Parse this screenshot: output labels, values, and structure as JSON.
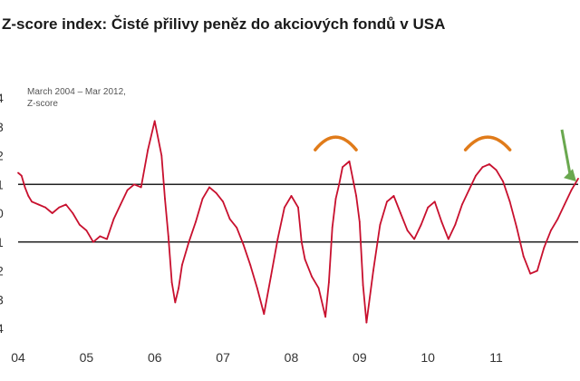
{
  "title": "Z-score index: Čisté přilivy peněz do akciových fondů v USA",
  "chart_data": {
    "type": "line",
    "annotation_lines": [
      "March 2004 – Mar 2012,",
      "Z-score"
    ],
    "x_range": [
      2004.0,
      2012.2
    ],
    "x_ticks": [
      {
        "label": "04",
        "value": 2004
      },
      {
        "label": "05",
        "value": 2005
      },
      {
        "label": "06",
        "value": 2006
      },
      {
        "label": "07",
        "value": 2007
      },
      {
        "label": "08",
        "value": 2008
      },
      {
        "label": "09",
        "value": 2009
      },
      {
        "label": "10",
        "value": 2010
      },
      {
        "label": "11",
        "value": 2011
      }
    ],
    "y_range": [
      -4,
      4
    ],
    "y_ticks": [
      {
        "label": "4",
        "value": 4
      },
      {
        "label": "3",
        "value": 3
      },
      {
        "label": "2",
        "value": 2
      },
      {
        "label": "1",
        "value": 1
      },
      {
        "label": "0",
        "value": 0
      },
      {
        "label": "1",
        "value": -1
      },
      {
        "label": "2",
        "value": -2
      },
      {
        "label": "3",
        "value": -3
      },
      {
        "label": "4",
        "value": -4
      }
    ],
    "reference_lines": [
      1,
      -1
    ],
    "line_color": "#c8102e",
    "arc_color": "#e07b1a",
    "arrow_color": "#6aa84f",
    "highlight_arcs": [
      {
        "x_from": 2008.35,
        "x_to": 2008.95
      },
      {
        "x_from": 2010.55,
        "x_to": 2011.2
      }
    ],
    "arrow": {
      "from": [
        2012.05,
        2.9
      ],
      "to": [
        2012.75,
        1.1
      ]
    },
    "series": [
      {
        "x": [
          2004.0,
          2004.05,
          2004.1,
          2004.15,
          2004.2,
          2004.3,
          2004.4,
          2004.5,
          2004.6,
          2004.7,
          2004.8,
          2004.9,
          2005.0,
          2005.1,
          2005.2,
          2005.3,
          2005.4,
          2005.5,
          2005.6,
          2005.7,
          2005.8,
          2005.9,
          2006.0,
          2006.1,
          2006.15,
          2006.2,
          2006.25,
          2006.3,
          2006.35,
          2006.4,
          2006.5,
          2006.6,
          2006.7,
          2006.8,
          2006.9,
          2007.0,
          2007.1,
          2007.2,
          2007.3,
          2007.4,
          2007.5,
          2007.6,
          2007.7,
          2007.8,
          2007.9,
          2008.0,
          2008.1,
          2008.15,
          2008.2,
          2008.3,
          2008.4,
          2008.5,
          2008.55,
          2008.6,
          2008.65,
          2008.7,
          2008.75,
          2008.8,
          2008.85,
          2008.9,
          2008.95,
          2009.0,
          2009.05,
          2009.1,
          2009.2,
          2009.3,
          2009.4,
          2009.5,
          2009.6,
          2009.7,
          2009.8,
          2009.9,
          2010.0,
          2010.1,
          2010.2,
          2010.3,
          2010.4,
          2010.5,
          2010.6,
          2010.7,
          2010.8,
          2010.9,
          2011.0,
          2011.1,
          2011.2,
          2011.3,
          2011.4,
          2011.5,
          2011.6,
          2011.7,
          2011.8,
          2011.9,
          2012.0,
          2012.1,
          2012.2
        ],
        "values": [
          1.4,
          1.3,
          0.9,
          0.6,
          0.4,
          0.3,
          0.2,
          0.0,
          0.2,
          0.3,
          0.0,
          -0.4,
          -0.6,
          -1.0,
          -0.8,
          -0.9,
          -0.2,
          0.3,
          0.8,
          1.0,
          0.9,
          2.2,
          3.2,
          2.0,
          0.5,
          -0.8,
          -2.4,
          -3.1,
          -2.6,
          -1.8,
          -1.0,
          -0.3,
          0.5,
          0.9,
          0.7,
          0.4,
          -0.2,
          -0.5,
          -1.1,
          -1.8,
          -2.6,
          -3.5,
          -2.2,
          -0.9,
          0.2,
          0.6,
          0.2,
          -1.0,
          -1.6,
          -2.2,
          -2.6,
          -3.6,
          -2.4,
          -0.5,
          0.5,
          1.0,
          1.6,
          1.7,
          1.8,
          1.2,
          0.6,
          -0.3,
          -2.5,
          -3.8,
          -2.0,
          -0.4,
          0.4,
          0.6,
          0.0,
          -0.6,
          -0.9,
          -0.4,
          0.2,
          0.4,
          -0.3,
          -0.9,
          -0.4,
          0.3,
          0.8,
          1.3,
          1.6,
          1.7,
          1.5,
          1.1,
          0.4,
          -0.5,
          -1.5,
          -2.1,
          -2.0,
          -1.2,
          -0.6,
          -0.2,
          0.3,
          0.8,
          1.2
        ]
      }
    ]
  }
}
